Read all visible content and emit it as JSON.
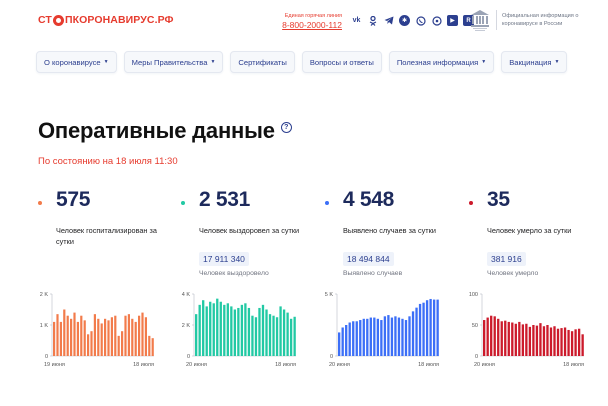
{
  "header": {
    "logo": {
      "part1": "СТ",
      "part2": "П",
      "part3": "КОРОНАВИРУС.РФ"
    },
    "hotline": {
      "label": "Единая горячая линия",
      "number": "8-800-2000-112"
    },
    "socials": [
      "vk-icon",
      "ok-icon",
      "telegram-icon",
      "snowflake-icon",
      "viber-icon",
      "whatsapp-icon",
      "youtube-icon",
      "rutube-icon"
    ],
    "gov_text": "Официальная информация о коронавирусе в России"
  },
  "nav": {
    "items": [
      {
        "label": "О коронавирусе",
        "dropdown": true
      },
      {
        "label": "Меры Правительства",
        "dropdown": true
      },
      {
        "label": "Сертификаты",
        "dropdown": false
      },
      {
        "label": "Вопросы и ответы",
        "dropdown": false
      },
      {
        "label": "Полезная информация",
        "dropdown": true
      },
      {
        "label": "Вакцинация",
        "dropdown": true
      }
    ]
  },
  "main": {
    "title": "Оперативные данные",
    "as_of": "По состоянию на 18 июля 11:30"
  },
  "stats": [
    {
      "value": "575",
      "desc": "Человек госпитализирован за сутки",
      "total": "",
      "total_label": "",
      "color": "#f27b4b"
    },
    {
      "value": "2 531",
      "desc": "Человек выздоровел за сутки",
      "total": "17 911 340",
      "total_label": "Человек выздоровело",
      "color": "#22c9a4"
    },
    {
      "value": "4 548",
      "desc": "Выявлено случаев за сутки",
      "total": "18 494 844",
      "total_label": "Выявлено случаев",
      "color": "#3c6ff7"
    },
    {
      "value": "35",
      "desc": "Человек умерло за сутки",
      "total": "381 916",
      "total_label": "Человек умерло",
      "color": "#cc1a2b"
    }
  ],
  "chart_data": [
    {
      "type": "bar",
      "color": "#f27b4b",
      "yticks": [
        "2 K",
        "1 K",
        "0"
      ],
      "ylim": [
        0,
        2000
      ],
      "x_start": "19 июня",
      "x_end": "18 июля",
      "values": [
        1100,
        1350,
        1100,
        1500,
        1300,
        1200,
        1400,
        1100,
        1300,
        1150,
        700,
        800,
        1350,
        1200,
        1050,
        1200,
        1150,
        1250,
        1300,
        650,
        800,
        1300,
        1350,
        1200,
        1100,
        1300,
        1400,
        1250,
        650,
        575
      ]
    },
    {
      "type": "bar",
      "color": "#22c9a4",
      "yticks": [
        "4 K",
        "2 K",
        "0"
      ],
      "ylim": [
        0,
        4000
      ],
      "x_start": "20 июня",
      "x_end": "18 июля",
      "values": [
        2700,
        3300,
        3600,
        3200,
        3500,
        3400,
        3700,
        3500,
        3300,
        3400,
        3200,
        3000,
        3100,
        3300,
        3400,
        3100,
        2600,
        2500,
        3100,
        3300,
        3000,
        2700,
        2600,
        2500,
        3200,
        3000,
        2800,
        2400,
        2531
      ]
    },
    {
      "type": "bar",
      "color": "#3c6ff7",
      "yticks": [
        "5 K",
        "0"
      ],
      "ylim": [
        0,
        5000
      ],
      "x_start": "20 июня",
      "x_end": "18 июля",
      "values": [
        1900,
        2300,
        2500,
        2700,
        2800,
        2800,
        2900,
        3000,
        3000,
        3100,
        3100,
        3000,
        2900,
        3200,
        3300,
        3100,
        3200,
        3100,
        3000,
        2900,
        3200,
        3600,
        3900,
        4200,
        4300,
        4500,
        4600,
        4550,
        4548
      ]
    },
    {
      "type": "bar",
      "color": "#cc1a2b",
      "yticks": [
        "100",
        "50",
        "0"
      ],
      "ylim": [
        0,
        100
      ],
      "x_start": "20 июня",
      "x_end": "18 июля",
      "values": [
        58,
        62,
        65,
        64,
        60,
        56,
        57,
        55,
        54,
        52,
        55,
        51,
        52,
        47,
        50,
        49,
        53,
        48,
        50,
        46,
        48,
        44,
        45,
        46,
        42,
        40,
        43,
        44,
        35
      ]
    }
  ]
}
